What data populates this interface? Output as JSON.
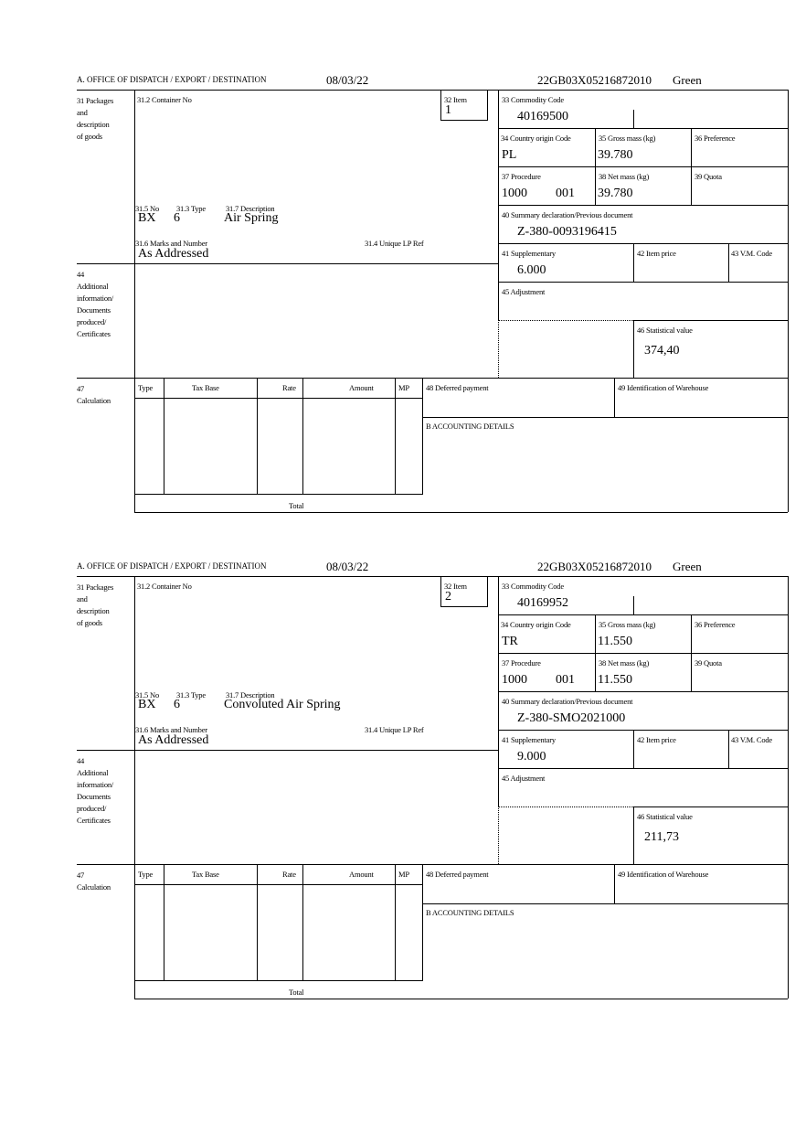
{
  "header": {
    "office_label": "A.  OFFICE OF DISPATCH / EXPORT / DESTINATION"
  },
  "labels": {
    "packages": "31 Packages\nand\ndescription\nof goods",
    "container_no": "31.2 Container No",
    "item": "32 Item",
    "no": "31.5 No",
    "type": "31.3 Type",
    "description": "31.7 Description",
    "marks": "31.6 Marks and Number",
    "unique_lp": "31.4 Unique LP Ref",
    "additional": "44\nAdditional\ninformation/\nDocuments\nproduced/\nCertificates",
    "commodity": "33 Commodity Code",
    "country": "34 Country origin Code",
    "gross": "35 Gross mass (kg)",
    "preference": "36 Preference",
    "procedure": "37 Procedure",
    "net": "38 Net mass (kg)",
    "quota": "39 Quota",
    "summary": "40 Summary declaration/Previous document",
    "supplementary": "41 Supplementary",
    "item_price": "42 Item price",
    "vm_code": "43 V.M. Code",
    "adjustment": "45 Adjustment",
    "statistical": "46 Statistical value",
    "calculation": "47\nCalculation",
    "calc_type": "Type",
    "tax_base": "Tax Base",
    "rate": "Rate",
    "amount": "Amount",
    "mp": "MP",
    "deferred": "48 Deferred payment",
    "warehouse": "49 Identification of Warehouse",
    "accounting": "B ACCOUNTING DETAILS",
    "total": "Total"
  },
  "items": [
    {
      "date": "08/03/22",
      "reference": "22GB03X05216872010",
      "route": "Green",
      "item_no": "1",
      "pkg_kind": "BX",
      "pkg_count": "6",
      "description": "Air Spring",
      "marks": "As Addressed",
      "commodity_code": "40169500",
      "country": "PL",
      "gross_mass": "39.780",
      "procedure": "1000",
      "procedure_add": "001",
      "net_mass": "39.780",
      "summary_doc": "Z-380-0093196415",
      "supplementary": "6.000",
      "statistical_value": "374,40"
    },
    {
      "date": "08/03/22",
      "reference": "22GB03X05216872010",
      "route": "Green",
      "item_no": "2",
      "pkg_kind": "BX",
      "pkg_count": "6",
      "description": "Convoluted Air Spring",
      "marks": "As Addressed",
      "commodity_code": "40169952",
      "country": "TR",
      "gross_mass": "11.550",
      "procedure": "1000",
      "procedure_add": "001",
      "net_mass": "11.550",
      "summary_doc": "Z-380-SMO2021000",
      "supplementary": "9.000",
      "statistical_value": "211,73"
    }
  ]
}
